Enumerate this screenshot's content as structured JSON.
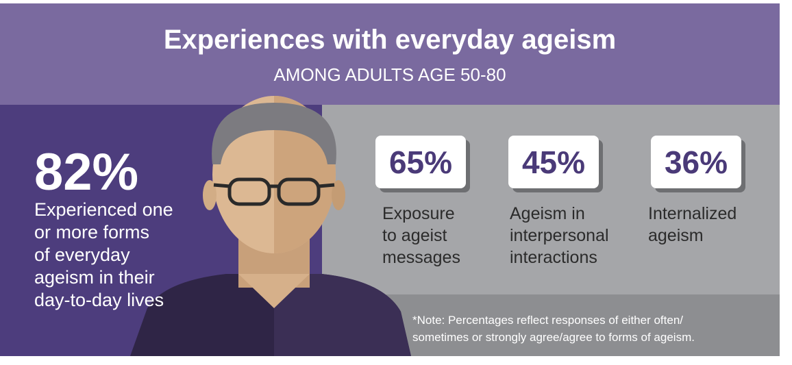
{
  "header": {
    "title": "Experiences with everyday ageism",
    "subtitle": "AMONG ADULTS AGE 50-80"
  },
  "main_stat": {
    "value": "82%",
    "lines": [
      "Experienced one",
      "or more forms",
      "of everyday",
      "ageism in their",
      "day-to-day lives"
    ]
  },
  "stats": [
    {
      "value": "65%",
      "lines": [
        "Exposure",
        "to ageist",
        "messages"
      ]
    },
    {
      "value": "45%",
      "lines": [
        "Ageism in",
        "interpersonal",
        "interactions"
      ]
    },
    {
      "value": "36%",
      "lines": [
        "Internalized",
        "ageism"
      ]
    }
  ],
  "note": {
    "lines": [
      "*Note: Percentages reflect responses of either often/",
      "sometimes or strongly agree/agree to forms of ageism."
    ]
  }
}
